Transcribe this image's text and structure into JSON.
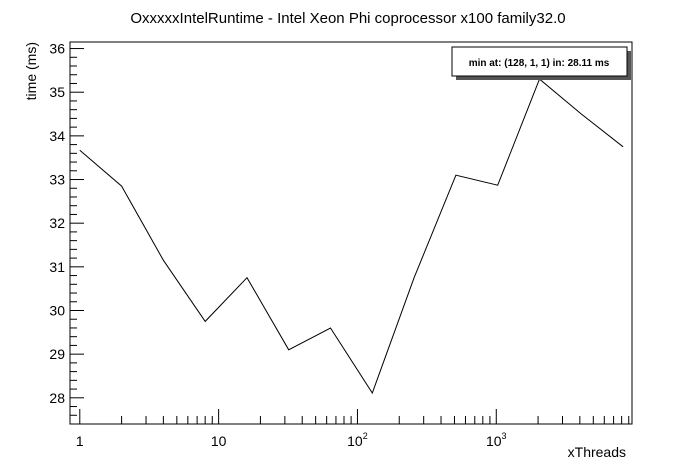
{
  "chart_data": {
    "type": "line",
    "title": "OxxxxxIntelRuntime - Intel Xeon Phi coprocessor x100 family32.0",
    "xlabel": "xThreads",
    "ylabel": "time (ms)",
    "x_scale": "log",
    "xlim": [
      0.85,
      9500
    ],
    "ylim": [
      27.4,
      36.15
    ],
    "x_ticks": [
      {
        "value": 1,
        "base": "1",
        "exp": ""
      },
      {
        "value": 10,
        "base": "10",
        "exp": ""
      },
      {
        "value": 100,
        "base": "10",
        "exp": "2"
      },
      {
        "value": 1000,
        "base": "10",
        "exp": "3"
      }
    ],
    "y_ticks": [
      28,
      29,
      30,
      31,
      32,
      33,
      34,
      35,
      36
    ],
    "series": [
      {
        "x": [
          1,
          2,
          4,
          8,
          16,
          32,
          64,
          128,
          256,
          512,
          1024,
          2048,
          4096,
          8192
        ],
        "y": [
          33.67,
          32.85,
          31.15,
          29.75,
          30.75,
          29.1,
          29.6,
          28.11,
          30.75,
          33.1,
          32.87,
          35.3,
          34.5,
          33.75
        ]
      }
    ],
    "annotation": "min at: (128, 1, 1) in: 28.11 ms",
    "grid": false
  }
}
